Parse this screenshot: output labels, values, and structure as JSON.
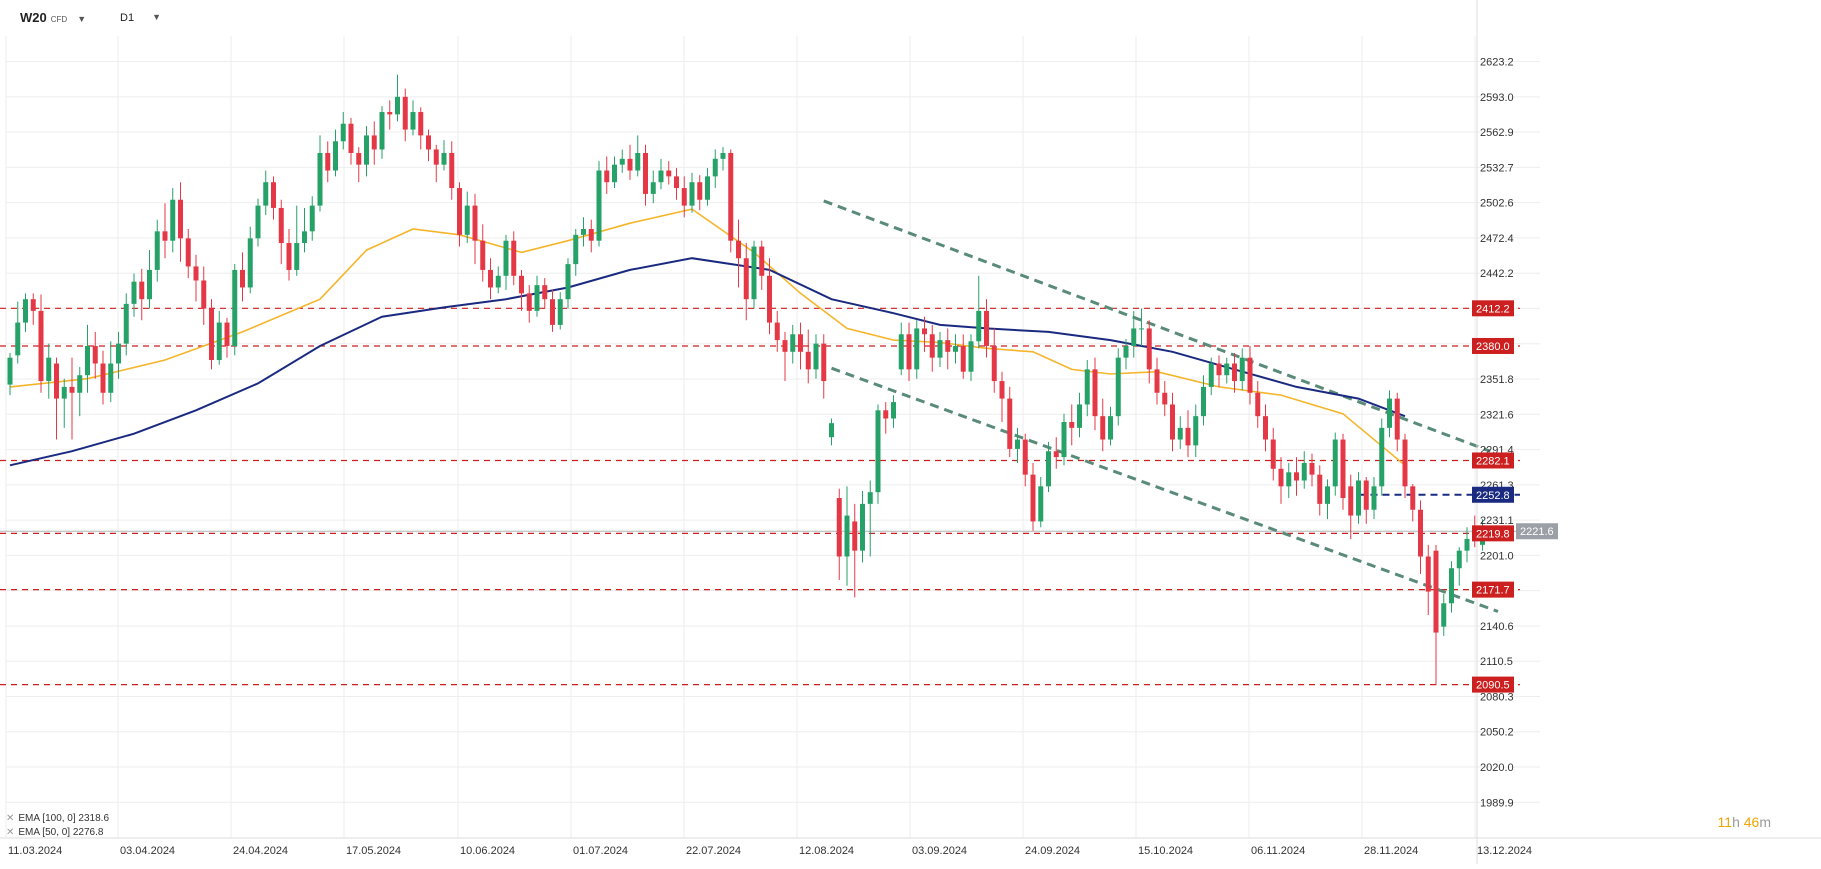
{
  "header": {
    "symbol": "W20",
    "symbol_type": "CFD",
    "timeframe": "D1",
    "dropdown_icon": "chevron-down-icon"
  },
  "legend": {
    "close_icon": "close-icon",
    "ema100": "EMA [100, 0] 2318.6",
    "ema50": "EMA [50, 0] 2276.8"
  },
  "timer": {
    "hours": "11",
    "h_unit": "h",
    "minutes": "46",
    "m_unit": "m"
  },
  "colors": {
    "up": "#26a269",
    "down": "#e53846",
    "ema50": "#f5b52b",
    "ema100": "#1a2a80",
    "channel": "#5a8a78",
    "level": "#cc1f1f",
    "grid": "#eeeeee",
    "price_tag": "#9aa0a6",
    "target_tag": "#1a2a80"
  },
  "chart_data": {
    "type": "candlestick",
    "y_axis_ticks": [
      "2623.2",
      "2593.0",
      "2562.9",
      "2532.7",
      "2502.6",
      "2472.4",
      "2442.2",
      "2412.1",
      "2381.9",
      "2351.8",
      "2321.6",
      "2291.4",
      "2261.3",
      "2231.1",
      "2201.0",
      "2170.8",
      "2140.6",
      "2110.5",
      "2080.3",
      "2050.2",
      "2020.0",
      "1989.9"
    ],
    "ylim": [
      1985,
      2645
    ],
    "x_axis_ticks": [
      "11.03.2024",
      "03.04.2024",
      "24.04.2024",
      "17.05.2024",
      "10.06.2024",
      "01.07.2024",
      "22.07.2024",
      "12.08.2024",
      "03.09.2024",
      "24.09.2024",
      "15.10.2024",
      "06.11.2024",
      "28.11.2024",
      "13.12.2024"
    ],
    "horizontal_levels": [
      {
        "label": "2412.2",
        "value": 2412.2
      },
      {
        "label": "2380.0",
        "value": 2380.0
      },
      {
        "label": "2282.1",
        "value": 2282.1
      },
      {
        "label": "2219.8",
        "value": 2219.8
      },
      {
        "label": "2171.7",
        "value": 2171.7
      },
      {
        "label": "2090.5",
        "value": 2090.5
      }
    ],
    "target_level": {
      "label": "2252.8",
      "value": 2252.8
    },
    "current_price": {
      "label": "2221.6",
      "value": 2221.6
    },
    "channel_upper": [
      [
        105,
        2504
      ],
      [
        191,
        2290
      ]
    ],
    "channel_lower": [
      [
        106,
        2361
      ],
      [
        192,
        2153
      ]
    ],
    "ema50": [
      [
        0,
        2345
      ],
      [
        10,
        2352
      ],
      [
        20,
        2368
      ],
      [
        30,
        2392
      ],
      [
        40,
        2420
      ],
      [
        46,
        2462
      ],
      [
        52,
        2480
      ],
      [
        58,
        2475
      ],
      [
        66,
        2460
      ],
      [
        72,
        2470
      ],
      [
        80,
        2485
      ],
      [
        88,
        2497
      ],
      [
        96,
        2460
      ],
      [
        102,
        2425
      ],
      [
        108,
        2395
      ],
      [
        114,
        2385
      ],
      [
        120,
        2383
      ],
      [
        126,
        2378
      ],
      [
        132,
        2375
      ],
      [
        137,
        2360
      ],
      [
        142,
        2356
      ],
      [
        148,
        2358
      ],
      [
        156,
        2345
      ],
      [
        164,
        2338
      ],
      [
        172,
        2322
      ],
      [
        180,
        2278
      ]
    ],
    "ema100": [
      [
        0,
        2278
      ],
      [
        8,
        2290
      ],
      [
        16,
        2305
      ],
      [
        24,
        2325
      ],
      [
        32,
        2348
      ],
      [
        40,
        2380
      ],
      [
        48,
        2405
      ],
      [
        56,
        2413
      ],
      [
        64,
        2420
      ],
      [
        72,
        2430
      ],
      [
        80,
        2445
      ],
      [
        88,
        2455
      ],
      [
        98,
        2445
      ],
      [
        106,
        2420
      ],
      [
        114,
        2408
      ],
      [
        120,
        2398
      ],
      [
        126,
        2395
      ],
      [
        134,
        2392
      ],
      [
        142,
        2385
      ],
      [
        150,
        2375
      ],
      [
        158,
        2360
      ],
      [
        166,
        2345
      ],
      [
        174,
        2335
      ],
      [
        180,
        2320
      ]
    ],
    "candles": [
      [
        2347,
        2370,
        2338,
        2374
      ],
      [
        2372,
        2400,
        2365,
        2418
      ],
      [
        2400,
        2420,
        2392,
        2425
      ],
      [
        2420,
        2410,
        2398,
        2425
      ],
      [
        2410,
        2350,
        2340,
        2424
      ],
      [
        2350,
        2370,
        2335,
        2382
      ],
      [
        2365,
        2335,
        2300,
        2370
      ],
      [
        2335,
        2345,
        2310,
        2352
      ],
      [
        2345,
        2340,
        2300,
        2370
      ],
      [
        2340,
        2355,
        2320,
        2362
      ],
      [
        2355,
        2380,
        2340,
        2398
      ],
      [
        2380,
        2365,
        2352,
        2392
      ],
      [
        2365,
        2340,
        2330,
        2376
      ],
      [
        2340,
        2365,
        2332,
        2384
      ],
      [
        2365,
        2382,
        2352,
        2392
      ],
      [
        2382,
        2416,
        2372,
        2425
      ],
      [
        2416,
        2435,
        2405,
        2442
      ],
      [
        2435,
        2420,
        2402,
        2446
      ],
      [
        2420,
        2445,
        2412,
        2462
      ],
      [
        2445,
        2478,
        2435,
        2488
      ],
      [
        2478,
        2470,
        2455,
        2502
      ],
      [
        2470,
        2505,
        2460,
        2515
      ],
      [
        2505,
        2472,
        2452,
        2520
      ],
      [
        2472,
        2448,
        2438,
        2480
      ],
      [
        2448,
        2436,
        2418,
        2458
      ],
      [
        2436,
        2412,
        2398,
        2448
      ],
      [
        2412,
        2368,
        2360,
        2420
      ],
      [
        2368,
        2400,
        2364,
        2410
      ],
      [
        2400,
        2380,
        2370,
        2404
      ],
      [
        2380,
        2445,
        2372,
        2450
      ],
      [
        2445,
        2430,
        2418,
        2460
      ],
      [
        2430,
        2472,
        2425,
        2482
      ],
      [
        2472,
        2500,
        2465,
        2506
      ],
      [
        2500,
        2520,
        2492,
        2530
      ],
      [
        2520,
        2498,
        2488,
        2525
      ],
      [
        2498,
        2468,
        2450,
        2505
      ],
      [
        2468,
        2445,
        2436,
        2480
      ],
      [
        2445,
        2468,
        2440,
        2500
      ],
      [
        2468,
        2478,
        2460,
        2498
      ],
      [
        2478,
        2500,
        2470,
        2508
      ],
      [
        2500,
        2545,
        2495,
        2560
      ],
      [
        2545,
        2530,
        2520,
        2555
      ],
      [
        2530,
        2555,
        2525,
        2565
      ],
      [
        2555,
        2570,
        2548,
        2580
      ],
      [
        2570,
        2545,
        2535,
        2575
      ],
      [
        2545,
        2535,
        2520,
        2550
      ],
      [
        2535,
        2560,
        2525,
        2568
      ],
      [
        2560,
        2548,
        2535,
        2572
      ],
      [
        2548,
        2580,
        2540,
        2585
      ],
      [
        2580,
        2578,
        2565,
        2590
      ],
      [
        2578,
        2593,
        2572,
        2612
      ],
      [
        2593,
        2565,
        2555,
        2600
      ],
      [
        2565,
        2580,
        2560,
        2590
      ],
      [
        2580,
        2560,
        2548,
        2584
      ],
      [
        2560,
        2548,
        2538,
        2565
      ],
      [
        2548,
        2535,
        2520,
        2552
      ],
      [
        2535,
        2545,
        2530,
        2556
      ],
      [
        2545,
        2515,
        2505,
        2555
      ],
      [
        2515,
        2475,
        2465,
        2520
      ],
      [
        2475,
        2500,
        2468,
        2512
      ],
      [
        2500,
        2470,
        2450,
        2510
      ],
      [
        2470,
        2445,
        2435,
        2484
      ],
      [
        2445,
        2430,
        2420,
        2455
      ],
      [
        2430,
        2440,
        2425,
        2448
      ],
      [
        2440,
        2470,
        2428,
        2475
      ],
      [
        2470,
        2440,
        2432,
        2478
      ],
      [
        2440,
        2425,
        2410,
        2445
      ],
      [
        2425,
        2410,
        2400,
        2432
      ],
      [
        2410,
        2432,
        2405,
        2440
      ],
      [
        2432,
        2420,
        2412,
        2438
      ],
      [
        2420,
        2398,
        2392,
        2428
      ],
      [
        2398,
        2420,
        2394,
        2426
      ],
      [
        2420,
        2450,
        2412,
        2455
      ],
      [
        2450,
        2475,
        2440,
        2480
      ],
      [
        2475,
        2480,
        2465,
        2490
      ],
      [
        2480,
        2470,
        2460,
        2488
      ],
      [
        2470,
        2530,
        2465,
        2538
      ],
      [
        2530,
        2520,
        2510,
        2542
      ],
      [
        2520,
        2535,
        2515,
        2542
      ],
      [
        2535,
        2540,
        2528,
        2548
      ],
      [
        2540,
        2530,
        2522,
        2552
      ],
      [
        2530,
        2545,
        2525,
        2560
      ],
      [
        2545,
        2510,
        2500,
        2552
      ],
      [
        2510,
        2520,
        2502,
        2530
      ],
      [
        2520,
        2530,
        2514,
        2540
      ],
      [
        2530,
        2525,
        2518,
        2538
      ],
      [
        2525,
        2515,
        2505,
        2532
      ],
      [
        2515,
        2500,
        2490,
        2525
      ],
      [
        2500,
        2520,
        2494,
        2528
      ],
      [
        2520,
        2505,
        2496,
        2526
      ],
      [
        2505,
        2525,
        2500,
        2532
      ],
      [
        2525,
        2540,
        2515,
        2548
      ],
      [
        2540,
        2545,
        2530,
        2550
      ],
      [
        2545,
        2470,
        2460,
        2548
      ],
      [
        2470,
        2455,
        2430,
        2488
      ],
      [
        2455,
        2420,
        2402,
        2468
      ],
      [
        2420,
        2465,
        2412,
        2470
      ],
      [
        2465,
        2440,
        2428,
        2470
      ],
      [
        2440,
        2400,
        2390,
        2455
      ],
      [
        2400,
        2385,
        2375,
        2410
      ],
      [
        2385,
        2375,
        2350,
        2392
      ],
      [
        2375,
        2390,
        2365,
        2398
      ],
      [
        2390,
        2375,
        2360,
        2400
      ],
      [
        2375,
        2360,
        2348,
        2394
      ],
      [
        2360,
        2382,
        2352,
        2390
      ],
      [
        2382,
        2350,
        2335,
        2390
      ],
      [
        2302,
        2314,
        2295,
        2318
      ],
      [
        2250,
        2200,
        2180,
        2258
      ],
      [
        2200,
        2235,
        2175,
        2260
      ],
      [
        2230,
        2205,
        2165,
        2245
      ],
      [
        2205,
        2245,
        2195,
        2256
      ],
      [
        2245,
        2255,
        2200,
        2265
      ],
      [
        2255,
        2325,
        2245,
        2330
      ],
      [
        2325,
        2318,
        2305,
        2332
      ],
      [
        2318,
        2332,
        2310,
        2338
      ],
      [
        2360,
        2390,
        2355,
        2400
      ],
      [
        2390,
        2360,
        2350,
        2400
      ],
      [
        2360,
        2395,
        2352,
        2402
      ],
      [
        2395,
        2390,
        2375,
        2405
      ],
      [
        2390,
        2370,
        2358,
        2398
      ],
      [
        2370,
        2385,
        2362,
        2392
      ],
      [
        2385,
        2375,
        2360,
        2395
      ],
      [
        2375,
        2380,
        2365,
        2390
      ],
      [
        2380,
        2358,
        2352,
        2390
      ],
      [
        2358,
        2384,
        2350,
        2390
      ],
      [
        2384,
        2410,
        2378,
        2440
      ],
      [
        2410,
        2380,
        2370,
        2420
      ],
      [
        2380,
        2350,
        2340,
        2395
      ],
      [
        2350,
        2335,
        2315,
        2358
      ],
      [
        2335,
        2292,
        2285,
        2345
      ],
      [
        2292,
        2300,
        2280,
        2310
      ],
      [
        2300,
        2270,
        2260,
        2305
      ],
      [
        2270,
        2230,
        2222,
        2280
      ],
      [
        2230,
        2260,
        2225,
        2268
      ],
      [
        2260,
        2290,
        2255,
        2298
      ],
      [
        2290,
        2285,
        2275,
        2302
      ],
      [
        2285,
        2315,
        2278,
        2322
      ],
      [
        2315,
        2310,
        2295,
        2330
      ],
      [
        2310,
        2330,
        2302,
        2340
      ],
      [
        2330,
        2360,
        2320,
        2368
      ],
      [
        2360,
        2320,
        2308,
        2370
      ],
      [
        2320,
        2300,
        2290,
        2335
      ],
      [
        2300,
        2320,
        2295,
        2328
      ],
      [
        2320,
        2370,
        2312,
        2378
      ],
      [
        2370,
        2380,
        2360,
        2386
      ],
      [
        2380,
        2395,
        2370,
        2410
      ],
      [
        2395,
        2395,
        2380,
        2412
      ],
      [
        2395,
        2360,
        2348,
        2402
      ],
      [
        2360,
        2340,
        2330,
        2370
      ],
      [
        2340,
        2330,
        2320,
        2350
      ],
      [
        2330,
        2300,
        2290,
        2340
      ],
      [
        2300,
        2310,
        2292,
        2320
      ],
      [
        2310,
        2295,
        2285,
        2325
      ],
      [
        2295,
        2320,
        2285,
        2330
      ],
      [
        2320,
        2345,
        2312,
        2355
      ],
      [
        2345,
        2365,
        2338,
        2370
      ],
      [
        2365,
        2355,
        2345,
        2372
      ],
      [
        2355,
        2365,
        2348,
        2370
      ],
      [
        2365,
        2350,
        2340,
        2374
      ],
      [
        2350,
        2370,
        2342,
        2378
      ],
      [
        2370,
        2340,
        2330,
        2380
      ],
      [
        2340,
        2320,
        2310,
        2350
      ],
      [
        2320,
        2300,
        2290,
        2330
      ],
      [
        2300,
        2275,
        2265,
        2310
      ],
      [
        2275,
        2260,
        2245,
        2285
      ],
      [
        2260,
        2272,
        2250,
        2280
      ],
      [
        2272,
        2265,
        2252,
        2285
      ],
      [
        2265,
        2280,
        2258,
        2290
      ],
      [
        2280,
        2270,
        2260,
        2288
      ],
      [
        2270,
        2245,
        2235,
        2278
      ],
      [
        2245,
        2260,
        2232,
        2266
      ],
      [
        2260,
        2300,
        2252,
        2306
      ],
      [
        2300,
        2250,
        2240,
        2305
      ],
      [
        2260,
        2235,
        2215,
        2270
      ],
      [
        2235,
        2265,
        2228,
        2272
      ],
      [
        2265,
        2240,
        2228,
        2268
      ],
      [
        2240,
        2260,
        2232,
        2268
      ],
      [
        2260,
        2310,
        2252,
        2318
      ],
      [
        2310,
        2335,
        2302,
        2342
      ],
      [
        2335,
        2300,
        2290,
        2340
      ],
      [
        2300,
        2260,
        2250,
        2305
      ],
      [
        2260,
        2240,
        2230,
        2262
      ],
      [
        2240,
        2200,
        2185,
        2248
      ],
      [
        2200,
        2170,
        2150,
        2210
      ],
      [
        2205,
        2135,
        2090,
        2210
      ],
      [
        2140,
        2160,
        2132,
        2168
      ],
      [
        2160,
        2190,
        2152,
        2196
      ],
      [
        2190,
        2205,
        2175,
        2208
      ],
      [
        2205,
        2215,
        2195,
        2225
      ],
      [
        2225,
        2215,
        2208,
        2235
      ],
      [
        2210,
        2225,
        2205,
        2232
      ]
    ]
  }
}
